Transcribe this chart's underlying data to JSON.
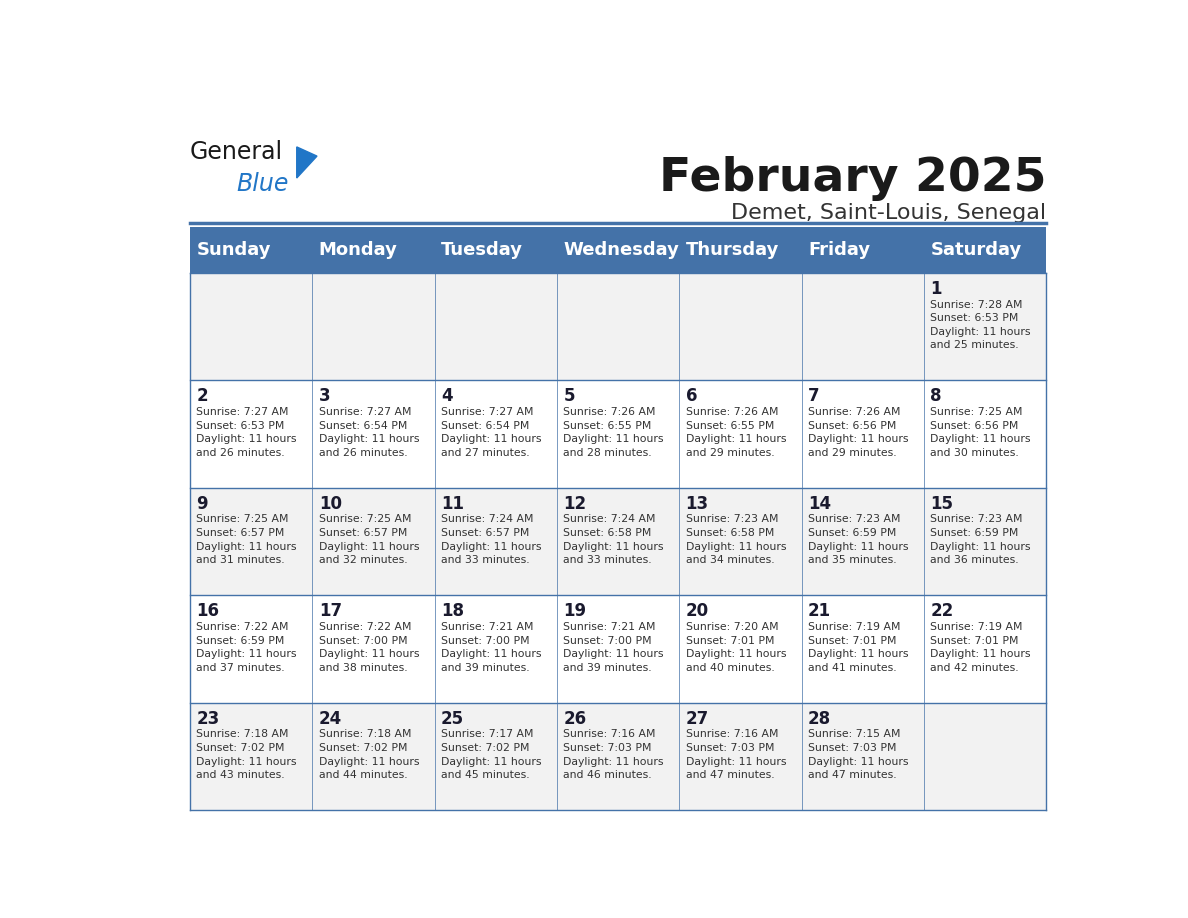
{
  "title": "February 2025",
  "subtitle": "Demet, Saint-Louis, Senegal",
  "header_bg": "#4472a8",
  "header_text": "#ffffff",
  "weekdays": [
    "Sunday",
    "Monday",
    "Tuesday",
    "Wednesday",
    "Thursday",
    "Friday",
    "Saturday"
  ],
  "row_colors": [
    "#f2f2f2",
    "#ffffff"
  ],
  "border_color": "#4472a8",
  "text_color": "#333333",
  "day_num_color": "#1a1a2e",
  "title_color": "#1a1a1a",
  "subtitle_color": "#333333",
  "logo_general_color": "#1a1a1a",
  "logo_blue_color": "#2176c7",
  "calendar_data": [
    [
      {
        "day": null,
        "info": null
      },
      {
        "day": null,
        "info": null
      },
      {
        "day": null,
        "info": null
      },
      {
        "day": null,
        "info": null
      },
      {
        "day": null,
        "info": null
      },
      {
        "day": null,
        "info": null
      },
      {
        "day": 1,
        "info": "Sunrise: 7:28 AM\nSunset: 6:53 PM\nDaylight: 11 hours\nand 25 minutes."
      }
    ],
    [
      {
        "day": 2,
        "info": "Sunrise: 7:27 AM\nSunset: 6:53 PM\nDaylight: 11 hours\nand 26 minutes."
      },
      {
        "day": 3,
        "info": "Sunrise: 7:27 AM\nSunset: 6:54 PM\nDaylight: 11 hours\nand 26 minutes."
      },
      {
        "day": 4,
        "info": "Sunrise: 7:27 AM\nSunset: 6:54 PM\nDaylight: 11 hours\nand 27 minutes."
      },
      {
        "day": 5,
        "info": "Sunrise: 7:26 AM\nSunset: 6:55 PM\nDaylight: 11 hours\nand 28 minutes."
      },
      {
        "day": 6,
        "info": "Sunrise: 7:26 AM\nSunset: 6:55 PM\nDaylight: 11 hours\nand 29 minutes."
      },
      {
        "day": 7,
        "info": "Sunrise: 7:26 AM\nSunset: 6:56 PM\nDaylight: 11 hours\nand 29 minutes."
      },
      {
        "day": 8,
        "info": "Sunrise: 7:25 AM\nSunset: 6:56 PM\nDaylight: 11 hours\nand 30 minutes."
      }
    ],
    [
      {
        "day": 9,
        "info": "Sunrise: 7:25 AM\nSunset: 6:57 PM\nDaylight: 11 hours\nand 31 minutes."
      },
      {
        "day": 10,
        "info": "Sunrise: 7:25 AM\nSunset: 6:57 PM\nDaylight: 11 hours\nand 32 minutes."
      },
      {
        "day": 11,
        "info": "Sunrise: 7:24 AM\nSunset: 6:57 PM\nDaylight: 11 hours\nand 33 minutes."
      },
      {
        "day": 12,
        "info": "Sunrise: 7:24 AM\nSunset: 6:58 PM\nDaylight: 11 hours\nand 33 minutes."
      },
      {
        "day": 13,
        "info": "Sunrise: 7:23 AM\nSunset: 6:58 PM\nDaylight: 11 hours\nand 34 minutes."
      },
      {
        "day": 14,
        "info": "Sunrise: 7:23 AM\nSunset: 6:59 PM\nDaylight: 11 hours\nand 35 minutes."
      },
      {
        "day": 15,
        "info": "Sunrise: 7:23 AM\nSunset: 6:59 PM\nDaylight: 11 hours\nand 36 minutes."
      }
    ],
    [
      {
        "day": 16,
        "info": "Sunrise: 7:22 AM\nSunset: 6:59 PM\nDaylight: 11 hours\nand 37 minutes."
      },
      {
        "day": 17,
        "info": "Sunrise: 7:22 AM\nSunset: 7:00 PM\nDaylight: 11 hours\nand 38 minutes."
      },
      {
        "day": 18,
        "info": "Sunrise: 7:21 AM\nSunset: 7:00 PM\nDaylight: 11 hours\nand 39 minutes."
      },
      {
        "day": 19,
        "info": "Sunrise: 7:21 AM\nSunset: 7:00 PM\nDaylight: 11 hours\nand 39 minutes."
      },
      {
        "day": 20,
        "info": "Sunrise: 7:20 AM\nSunset: 7:01 PM\nDaylight: 11 hours\nand 40 minutes."
      },
      {
        "day": 21,
        "info": "Sunrise: 7:19 AM\nSunset: 7:01 PM\nDaylight: 11 hours\nand 41 minutes."
      },
      {
        "day": 22,
        "info": "Sunrise: 7:19 AM\nSunset: 7:01 PM\nDaylight: 11 hours\nand 42 minutes."
      }
    ],
    [
      {
        "day": 23,
        "info": "Sunrise: 7:18 AM\nSunset: 7:02 PM\nDaylight: 11 hours\nand 43 minutes."
      },
      {
        "day": 24,
        "info": "Sunrise: 7:18 AM\nSunset: 7:02 PM\nDaylight: 11 hours\nand 44 minutes."
      },
      {
        "day": 25,
        "info": "Sunrise: 7:17 AM\nSunset: 7:02 PM\nDaylight: 11 hours\nand 45 minutes."
      },
      {
        "day": 26,
        "info": "Sunrise: 7:16 AM\nSunset: 7:03 PM\nDaylight: 11 hours\nand 46 minutes."
      },
      {
        "day": 27,
        "info": "Sunrise: 7:16 AM\nSunset: 7:03 PM\nDaylight: 11 hours\nand 47 minutes."
      },
      {
        "day": 28,
        "info": "Sunrise: 7:15 AM\nSunset: 7:03 PM\nDaylight: 11 hours\nand 47 minutes."
      },
      {
        "day": null,
        "info": null
      }
    ]
  ]
}
